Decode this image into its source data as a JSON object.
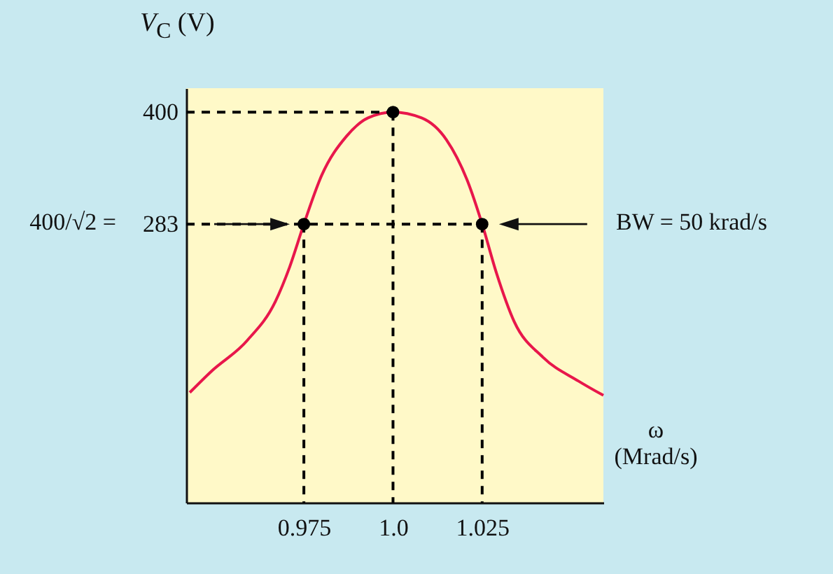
{
  "chart_data": {
    "type": "line",
    "xlabel": "ω (Mrad/s)",
    "ylabel": "V$_{C}$ (V)",
    "xlim": [
      0.942,
      1.059
    ],
    "ylim": [
      -8,
      425
    ],
    "xticks": [
      0.975,
      {
        "value": 1.0,
        "label": "1.0"
      },
      1.025
    ],
    "yticks": [
      283,
      400
    ],
    "annotations": [
      "BW = 50 krad/s",
      "400/√2 ="
    ],
    "series": [
      {
        "color": "#e8174b",
        "line_style": "solid",
        "marker": "none",
        "x": [
          0.943,
          0.949,
          0.959,
          0.967,
          0.971,
          0.975,
          0.98,
          0.987,
          0.993,
          1.0,
          1.008,
          1.015,
          1.021,
          1.025,
          1.029,
          1.034,
          1.042,
          1.052,
          1.059
        ],
        "values": [
          107,
          129,
          161,
          202,
          238,
          283,
          334,
          375,
          394,
          400,
          394,
          371,
          327,
          283,
          232,
          181,
          144,
          119,
          104
        ]
      },
      {
        "color": "#000000",
        "line_style": "dashed",
        "marker": "none",
        "x": [
          0.942,
          1.0
        ],
        "values": [
          400,
          400
        ]
      },
      {
        "color": "#000000",
        "line_style": "dashed",
        "marker": "none",
        "x": [
          0.942,
          1.025
        ],
        "values": [
          283,
          283
        ]
      },
      {
        "color": "#000000",
        "line_style": "dashed",
        "marker": "none",
        "x": [
          0.975,
          0.975
        ],
        "values": [
          283,
          -8
        ]
      },
      {
        "color": "#000000",
        "line_style": "dashed",
        "marker": "none",
        "x": [
          1.0,
          1.0
        ],
        "values": [
          400,
          -8
        ]
      },
      {
        "color": "#000000",
        "line_style": "dashed",
        "marker": "none",
        "x": [
          1.025,
          1.025
        ],
        "values": [
          283,
          -8
        ]
      },
      {
        "type": "scatter",
        "color": "#000000",
        "marker": "circle",
        "x": [
          0.975,
          1.0,
          1.025
        ],
        "values": [
          283,
          400,
          283
        ]
      }
    ]
  }
}
